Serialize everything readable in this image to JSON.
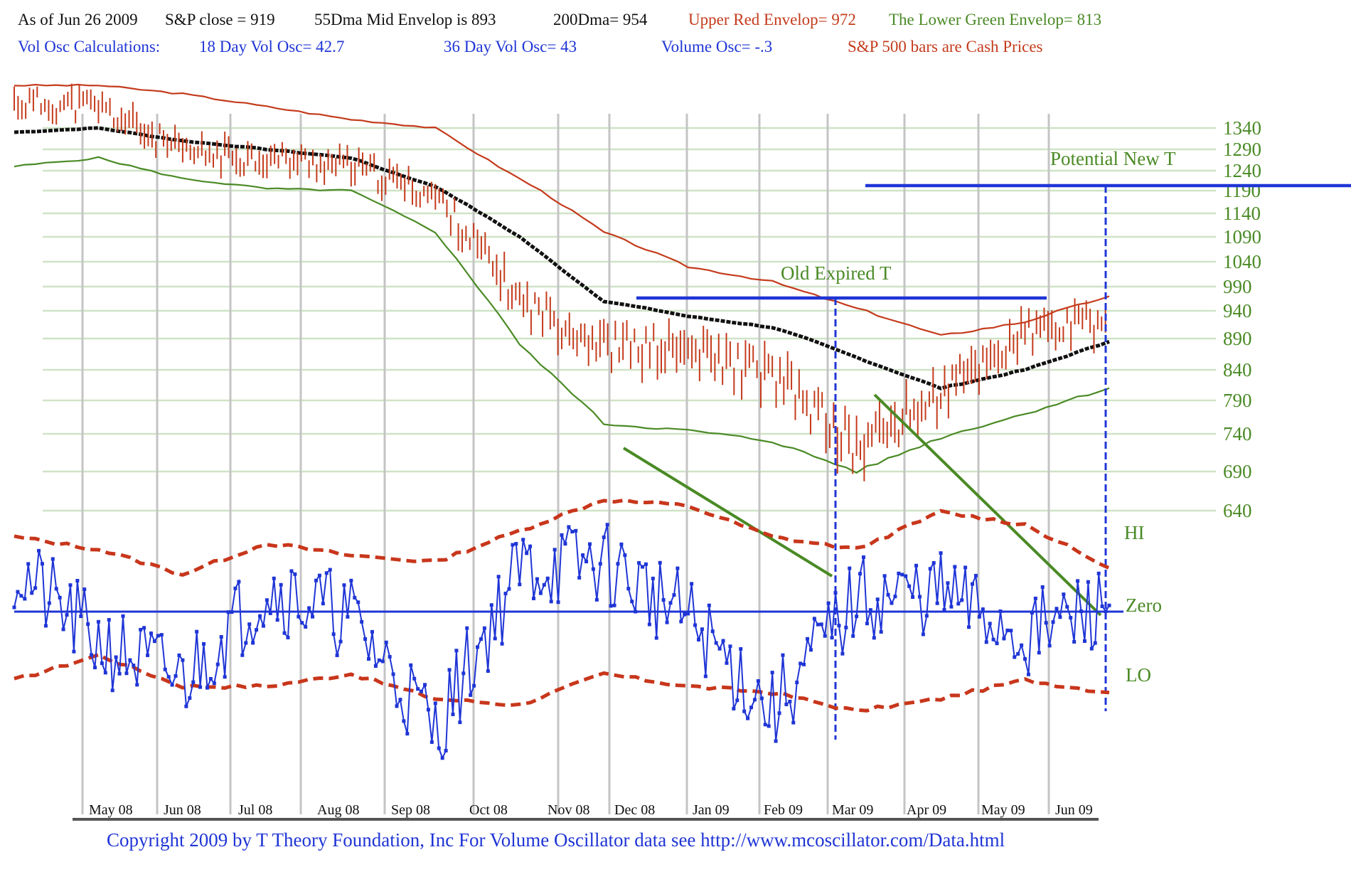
{
  "header": {
    "line1": {
      "as_of": "As of Jun 26  2009",
      "sp_close": "S&P close = 919",
      "mid_envelope": "55Dma Mid Envelop is  893",
      "dma200": "200Dma=  954",
      "upper_red": "Upper Red Envelop= 972",
      "lower_green": "The Lower Green Envelop=  813"
    },
    "line2": {
      "vol_osc_calc": "Vol Osc Calculations:",
      "vol_osc_18": "18 Day Vol Osc=  42.7",
      "vol_osc_36": "36 Day Vol Osc=  43",
      "volume_osc": "Volume Osc= -.3",
      "cash_prices": "S&P 500 bars are Cash Prices"
    }
  },
  "footer": "Copyright 2009 by T Theory Foundation, Inc  For Volume Oscillator data see http://www.mcoscillator.com/Data.html",
  "colors": {
    "price_bars": "#c43b1c",
    "upper_envelope": "#c43b1c",
    "mid_envelope": "#111111",
    "lower_envelope": "#4a8a25",
    "oscillator": "#1f35d6",
    "hi_lo_bands": "#c8361b",
    "t_lines": "#1f35d6",
    "trend_lines": "#4a8a25",
    "gridlines": "#cfe3c6",
    "month_lines": "#c4c4c4"
  },
  "chart_data": {
    "type": "line",
    "x_axis_labels": [
      "May 08",
      "Jun 08",
      "Jul 08",
      "Aug 08",
      "Sep 08",
      "Oct 08",
      "Nov 08",
      "Dec 08",
      "Jan 09",
      "Feb 09",
      "Mar 09",
      "Apr 09",
      "May 09",
      "Jun 09"
    ],
    "y_axis_ticks": [
      1340,
      1290,
      1240,
      1190,
      1140,
      1090,
      1040,
      990,
      940,
      890,
      840,
      790,
      740,
      690,
      640
    ],
    "oscillator_labels": {
      "hi": "HI",
      "zero": "Zero",
      "lo": "LO"
    },
    "annotations": {
      "old_t": "Old Expired T",
      "new_t": "Potential New T"
    },
    "month_index": [
      0,
      1,
      2,
      3,
      4,
      5,
      6,
      7,
      8,
      9,
      10,
      11,
      12,
      13
    ],
    "sp500_close": [
      1400,
      1390,
      1280,
      1270,
      1250,
      1180,
      960,
      880,
      870,
      830,
      720,
      800,
      900,
      920
    ],
    "mid_envelope_55dma": [
      1330,
      1340,
      1310,
      1290,
      1270,
      1200,
      1090,
      960,
      930,
      910,
      860,
      810,
      840,
      885
    ],
    "upper_envelope": [
      1440,
      1440,
      1420,
      1390,
      1360,
      1340,
      1220,
      1100,
      1030,
      1000,
      945,
      895,
      920,
      970
    ],
    "lower_envelope": [
      1250,
      1270,
      1220,
      1195,
      1190,
      1100,
      880,
      755,
      745,
      730,
      690,
      735,
      770,
      810
    ],
    "oscillator_hi_band": [
      60,
      50,
      30,
      55,
      45,
      40,
      65,
      90,
      85,
      60,
      50,
      80,
      70,
      35
    ],
    "oscillator_lo_band": [
      -55,
      -35,
      -60,
      -60,
      -50,
      -70,
      -75,
      -50,
      -60,
      -65,
      -80,
      -70,
      -55,
      -65
    ],
    "volume_oscillator": [
      35,
      -25,
      -55,
      20,
      -5,
      -95,
      35,
      40,
      -5,
      -80,
      10,
      15,
      -20,
      5
    ]
  }
}
